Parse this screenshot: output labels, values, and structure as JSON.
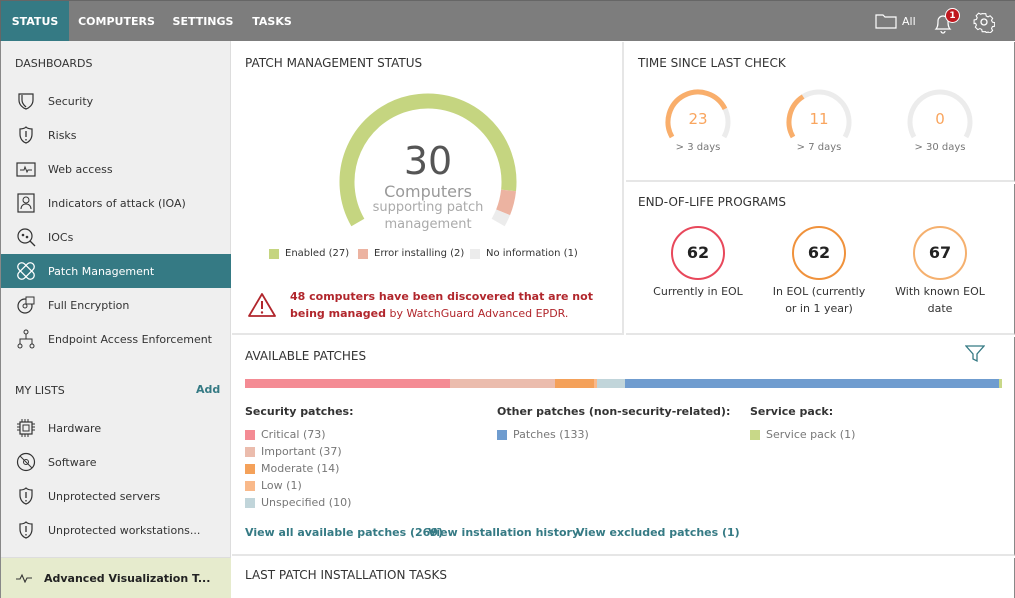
{
  "nav": {
    "tabs": [
      {
        "label": "STATUS",
        "active": true
      },
      {
        "label": "COMPUTERS"
      },
      {
        "label": "SETTINGS"
      },
      {
        "label": "TASKS"
      }
    ],
    "folder_label": "All",
    "notification_count": "1"
  },
  "sidebar": {
    "dashboards_title": "DASHBOARDS",
    "dashboards": [
      {
        "label": "Security",
        "icon": "shield-icon"
      },
      {
        "label": "Risks",
        "icon": "shield-alert-icon"
      },
      {
        "label": "Web access",
        "icon": "monitor-pulse-icon"
      },
      {
        "label": "Indicators of attack (IOA)",
        "icon": "attacker-icon"
      },
      {
        "label": "IOCs",
        "icon": "search-bug-icon"
      },
      {
        "label": "Patch Management",
        "icon": "patch-icon",
        "active": true
      },
      {
        "label": "Full Encryption",
        "icon": "encryption-icon"
      },
      {
        "label": "Endpoint Access Enforcement",
        "icon": "network-tree-icon"
      }
    ],
    "lists_title": "MY LISTS",
    "add_label": "Add",
    "lists": [
      {
        "label": "Hardware",
        "icon": "chip-icon"
      },
      {
        "label": "Software",
        "icon": "disc-icon"
      },
      {
        "label": "Unprotected servers",
        "icon": "shield-alert-icon"
      },
      {
        "label": "Unprotected workstations...",
        "icon": "shield-alert-icon"
      }
    ],
    "footer": "Advanced Visualization T..."
  },
  "patch_status": {
    "title": "PATCH MANAGEMENT STATUS",
    "total": "30",
    "label1": "Computers",
    "label2": "supporting patch",
    "label3": "management",
    "legend": [
      {
        "label": "Enabled (27)",
        "value": 27,
        "color": "#c5d580"
      },
      {
        "label": "Error installing (2)",
        "value": 2,
        "color": "#ecb3a1"
      },
      {
        "label": "No information (1)",
        "value": 1,
        "color": "#ececec"
      }
    ],
    "warning_bold": "48 computers have been discovered that are not being managed",
    "warning_rest": " by WatchGuard Advanced EPDR."
  },
  "time_check": {
    "title": "TIME SINCE LAST CHECK",
    "max": 30,
    "items": [
      {
        "value": "23",
        "label": "> 3 days"
      },
      {
        "value": "11",
        "label": "> 7 days"
      },
      {
        "value": "0",
        "label": "> 30 days"
      }
    ]
  },
  "eol": {
    "title": "END-OF-LIFE PROGRAMS",
    "items": [
      {
        "value": "62",
        "label": "Currently in EOL",
        "color": "#e8485b"
      },
      {
        "value": "62",
        "label": "In EOL (currently or in 1 year)",
        "color": "#f0923c"
      },
      {
        "value": "67",
        "label": "With known EOL date",
        "color": "#f5b06e"
      }
    ]
  },
  "patches": {
    "title": "AVAILABLE PATCHES",
    "security_title": "Security patches:",
    "other_title": "Other patches (non-security-related):",
    "service_title": "Service pack:",
    "security": [
      {
        "label": "Critical (73)",
        "value": 73,
        "color": "#f48b94"
      },
      {
        "label": "Important (37)",
        "value": 37,
        "color": "#ebbcad"
      },
      {
        "label": "Moderate (14)",
        "value": 14,
        "color": "#f4a15a"
      },
      {
        "label": "Low (1)",
        "value": 1,
        "color": "#f9b98a"
      },
      {
        "label": "Unspecified (10)",
        "value": 10,
        "color": "#c1d5da"
      }
    ],
    "other": [
      {
        "label": "Patches (133)",
        "value": 133,
        "color": "#6f9ccf"
      }
    ],
    "service": [
      {
        "label": "Service pack (1)",
        "value": 1,
        "color": "#c8d888"
      }
    ],
    "links": [
      "View all available patches (269)",
      "View installation history",
      "View excluded patches (1)"
    ]
  },
  "last_tasks": {
    "title": "LAST PATCH INSTALLATION TASKS"
  }
}
